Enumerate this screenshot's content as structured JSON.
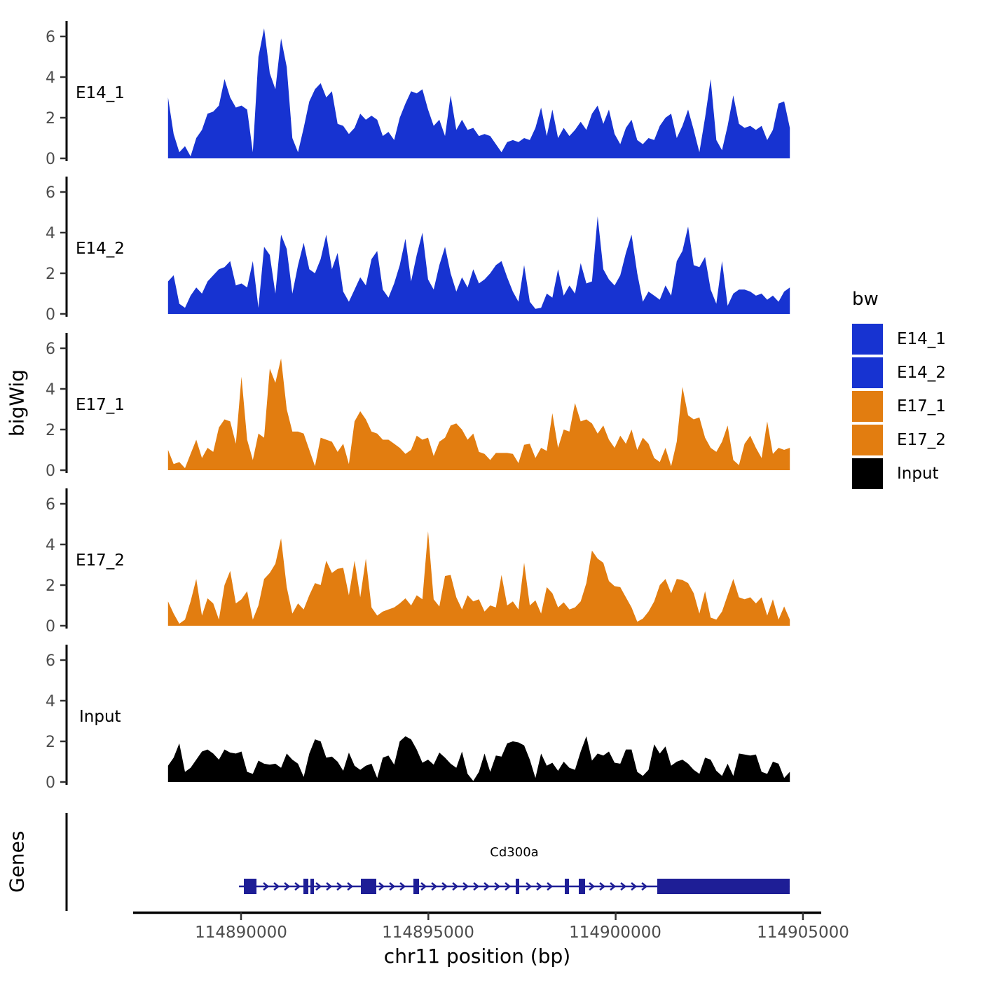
{
  "figure": {
    "ylabel_tracks": "bigWig",
    "ylabel_genes": "Genes",
    "xlabel": "chr11 position (bp)"
  },
  "legend": {
    "title": "bw",
    "items": [
      {
        "label": "E14_1",
        "color": "#1733D1"
      },
      {
        "label": "E14_2",
        "color": "#1733D1"
      },
      {
        "label": "E17_1",
        "color": "#E27D10"
      },
      {
        "label": "E17_2",
        "color": "#E27D10"
      },
      {
        "label": "Input",
        "color": "#000000"
      }
    ]
  },
  "chart_data": {
    "type": "area",
    "title": "",
    "xlabel": "chr11 position (bp)",
    "ylabel": "bigWig",
    "grid": "off",
    "legend_position": "right",
    "ylim": [
      0,
      6.7
    ],
    "y_ticks": [
      0,
      2,
      4,
      6
    ],
    "x_ticks": [
      {
        "value": 114890000,
        "label": "114890000"
      },
      {
        "value": 114895000,
        "label": "114895000"
      },
      {
        "value": 114900000,
        "label": "114900000"
      },
      {
        "value": 114905000,
        "label": "114905000"
      }
    ],
    "signal_x_start": 114888050,
    "signal_x_end": 114904650,
    "facets": [
      {
        "name": "E14_1",
        "color": "#1733D1",
        "values": [
          3.0,
          1.2,
          0.3,
          0.6,
          0.1,
          1.0,
          1.4,
          2.2,
          2.3,
          2.6,
          3.9,
          3.0,
          2.5,
          2.6,
          2.4,
          0.3,
          5.0,
          6.4,
          4.2,
          3.4,
          5.9,
          4.5,
          1.0,
          0.3,
          1.5,
          2.8,
          3.4,
          3.7,
          3.0,
          3.3,
          1.7,
          1.6,
          1.2,
          1.5,
          2.2,
          1.9,
          2.1,
          1.9,
          1.1,
          1.3,
          0.9,
          2.0,
          2.7,
          3.3,
          3.2,
          3.4,
          2.4,
          1.6,
          1.9,
          1.1,
          3.1,
          1.4,
          1.9,
          1.4,
          1.5,
          1.1,
          1.2,
          1.1,
          0.7,
          0.3,
          0.8,
          0.9,
          0.8,
          1.0,
          0.9,
          1.5,
          2.5,
          1.1,
          2.4,
          1.0,
          1.5,
          1.1,
          1.4,
          1.8,
          1.4,
          2.2,
          2.6,
          1.7,
          2.4,
          1.2,
          0.7,
          1.5,
          1.9,
          0.9,
          0.7,
          1.0,
          0.9,
          1.6,
          2.0,
          2.2,
          1.0,
          1.6,
          2.4,
          1.4,
          0.3,
          2.0,
          3.9,
          0.9,
          0.4,
          1.6,
          3.1,
          1.7,
          1.5,
          1.6,
          1.4,
          1.6,
          0.9,
          1.4,
          2.7,
          2.8,
          1.5
        ]
      },
      {
        "name": "E14_2",
        "color": "#1733D1",
        "values": [
          1.6,
          1.9,
          0.5,
          0.3,
          0.9,
          1.3,
          1.0,
          1.6,
          1.9,
          2.2,
          2.3,
          2.6,
          1.4,
          1.5,
          1.3,
          2.6,
          0.3,
          3.3,
          2.9,
          1.0,
          3.9,
          3.2,
          1.0,
          2.4,
          3.5,
          2.2,
          2.0,
          2.7,
          3.9,
          2.2,
          3.0,
          1.1,
          0.6,
          1.2,
          1.8,
          1.4,
          2.7,
          3.1,
          1.2,
          0.8,
          1.5,
          2.4,
          3.7,
          1.6,
          2.9,
          4.0,
          1.7,
          1.2,
          2.4,
          3.3,
          2.0,
          1.1,
          1.8,
          1.3,
          2.2,
          1.5,
          1.7,
          2.0,
          2.4,
          2.6,
          1.8,
          1.1,
          0.6,
          2.4,
          0.6,
          0.25,
          0.3,
          1.0,
          0.8,
          2.2,
          0.9,
          1.4,
          1.0,
          2.5,
          1.5,
          1.6,
          4.8,
          2.2,
          1.7,
          1.4,
          1.9,
          3.0,
          3.9,
          2.0,
          0.6,
          1.1,
          0.9,
          0.7,
          1.4,
          0.9,
          2.6,
          3.1,
          4.3,
          2.4,
          2.3,
          2.8,
          1.2,
          0.5,
          2.6,
          0.4,
          1.0,
          1.2,
          1.2,
          1.1,
          0.9,
          1.0,
          0.7,
          0.9,
          0.6,
          1.1,
          1.3
        ]
      },
      {
        "name": "E17_1",
        "color": "#E27D10",
        "values": [
          1.0,
          0.3,
          0.4,
          0.1,
          0.8,
          1.5,
          0.6,
          1.1,
          0.9,
          2.1,
          2.5,
          2.4,
          1.3,
          4.6,
          1.5,
          0.5,
          1.8,
          1.6,
          5.0,
          4.3,
          5.5,
          3.0,
          1.9,
          1.9,
          1.8,
          1.0,
          0.2,
          1.6,
          1.5,
          1.4,
          0.9,
          1.3,
          0.3,
          2.4,
          2.9,
          2.5,
          1.9,
          1.8,
          1.5,
          1.5,
          1.3,
          1.1,
          0.8,
          1.0,
          1.7,
          1.5,
          1.6,
          0.7,
          1.4,
          1.6,
          2.2,
          2.3,
          2.0,
          1.5,
          1.8,
          0.9,
          0.8,
          0.5,
          0.85,
          0.85,
          0.85,
          0.8,
          0.35,
          1.25,
          1.3,
          0.6,
          1.1,
          0.95,
          2.8,
          1.1,
          2.0,
          1.9,
          3.3,
          2.4,
          2.5,
          2.3,
          1.8,
          2.2,
          1.5,
          1.1,
          1.7,
          1.3,
          2.0,
          1.0,
          1.6,
          1.3,
          0.6,
          0.4,
          1.1,
          0.2,
          1.4,
          4.1,
          2.7,
          2.5,
          2.6,
          1.6,
          1.1,
          0.9,
          1.4,
          2.2,
          0.5,
          0.25,
          1.3,
          1.7,
          1.1,
          0.6,
          2.4,
          0.8,
          1.1,
          1.0,
          1.1
        ]
      },
      {
        "name": "E17_2",
        "color": "#E27D10",
        "values": [
          1.2,
          0.6,
          0.1,
          0.3,
          1.2,
          2.3,
          0.5,
          1.35,
          1.1,
          0.3,
          2.0,
          2.7,
          1.1,
          1.3,
          1.7,
          0.3,
          1.0,
          2.3,
          2.6,
          3.05,
          4.3,
          1.9,
          0.6,
          1.1,
          0.8,
          1.5,
          2.1,
          2.0,
          3.2,
          2.6,
          2.8,
          2.85,
          1.5,
          3.2,
          1.4,
          3.3,
          0.9,
          0.5,
          0.7,
          0.8,
          0.9,
          1.1,
          1.35,
          1.0,
          1.5,
          1.3,
          4.65,
          1.3,
          0.95,
          2.45,
          2.5,
          1.4,
          0.8,
          1.5,
          1.2,
          1.3,
          0.7,
          1.0,
          0.9,
          2.5,
          1.0,
          1.2,
          0.8,
          3.1,
          1.0,
          1.25,
          0.6,
          1.9,
          1.6,
          0.9,
          1.15,
          0.8,
          0.9,
          1.2,
          2.1,
          3.7,
          3.3,
          3.1,
          2.2,
          1.95,
          1.9,
          1.4,
          0.9,
          0.2,
          0.35,
          0.7,
          1.2,
          2.0,
          2.3,
          1.6,
          2.3,
          2.25,
          2.1,
          1.6,
          0.6,
          1.7,
          0.4,
          0.3,
          0.7,
          1.5,
          2.3,
          1.4,
          1.3,
          1.4,
          1.1,
          1.4,
          0.5,
          1.3,
          0.3,
          0.95,
          0.3
        ]
      },
      {
        "name": "Input",
        "color": "#000000",
        "values": [
          0.8,
          1.2,
          1.9,
          0.5,
          0.7,
          1.1,
          1.5,
          1.6,
          1.4,
          1.1,
          1.6,
          1.45,
          1.4,
          1.5,
          0.5,
          0.4,
          1.05,
          0.9,
          0.85,
          0.9,
          0.7,
          1.4,
          1.1,
          0.9,
          0.25,
          1.4,
          2.1,
          2.0,
          1.2,
          1.25,
          1.0,
          0.55,
          1.45,
          0.8,
          0.6,
          0.8,
          0.9,
          0.2,
          1.2,
          1.3,
          0.85,
          2.0,
          2.25,
          2.1,
          1.6,
          0.95,
          1.1,
          0.85,
          1.45,
          1.2,
          0.9,
          0.7,
          1.5,
          0.4,
          0.05,
          0.5,
          1.4,
          0.5,
          1.3,
          1.25,
          1.9,
          2.0,
          1.95,
          1.8,
          1.1,
          0.2,
          1.4,
          0.8,
          0.95,
          0.55,
          1.0,
          0.7,
          0.6,
          1.5,
          2.25,
          1.05,
          1.4,
          1.3,
          1.5,
          0.95,
          0.9,
          1.6,
          1.6,
          0.5,
          0.3,
          0.6,
          1.85,
          1.4,
          1.75,
          0.8,
          1.0,
          1.1,
          0.9,
          0.6,
          0.4,
          1.2,
          1.1,
          0.55,
          0.3,
          0.9,
          0.3,
          1.4,
          1.35,
          1.3,
          1.35,
          0.5,
          0.4,
          1.0,
          0.9,
          0.2,
          0.5
        ]
      }
    ],
    "gene_track": {
      "label": "Genes",
      "gene": {
        "name": "Cd300a",
        "color": "#1E1E96",
        "strand": "+",
        "line_start": 114889945,
        "line_end": 114904646,
        "exons": [
          [
            114890075,
            114890412
          ],
          [
            114891665,
            114891796
          ],
          [
            114891852,
            114891927
          ],
          [
            114893199,
            114893610
          ],
          [
            114894601,
            114894751
          ],
          [
            114897332,
            114897426
          ],
          [
            114898642,
            114898754
          ],
          [
            114899016,
            114899185
          ],
          [
            114901111,
            114904646
          ]
        ]
      }
    }
  }
}
